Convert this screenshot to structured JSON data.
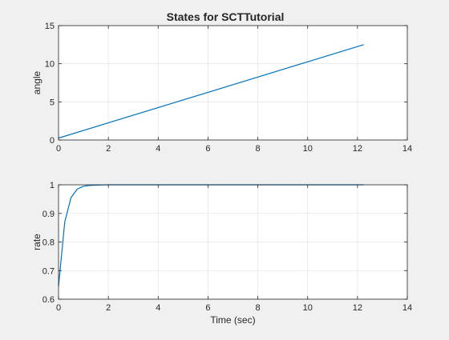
{
  "figure": {
    "title": "States for SCTTutorial",
    "background": "#f0f0f0",
    "axes_color": "#ffffff",
    "line_color": "#0072bd",
    "grid_color": "#e6e6e6"
  },
  "chart_data": [
    {
      "type": "line",
      "title": "States for SCTTutorial",
      "xlabel": "",
      "ylabel": "angle",
      "xlim": [
        0,
        14
      ],
      "ylim": [
        0,
        15
      ],
      "xticks": [
        0,
        2,
        4,
        6,
        8,
        10,
        12,
        14
      ],
      "yticks": [
        0,
        5,
        10,
        15
      ],
      "grid": true,
      "series": [
        {
          "x": [
            0,
            12.25
          ],
          "y": [
            0.25,
            12.5
          ]
        }
      ]
    },
    {
      "type": "line",
      "title": "",
      "xlabel": "Time (sec)",
      "ylabel": "rate",
      "xlim": [
        0,
        14
      ],
      "ylim": [
        0.6,
        1
      ],
      "xticks": [
        0,
        2,
        4,
        6,
        8,
        10,
        12,
        14
      ],
      "yticks": [
        0.6,
        0.7,
        0.8,
        0.9,
        1
      ],
      "grid": true,
      "series": [
        {
          "x": [
            0,
            0.25,
            0.5,
            0.75,
            1.0,
            1.25,
            1.5,
            2.0,
            3.0,
            12.25
          ],
          "y": [
            0.645,
            0.87,
            0.955,
            0.985,
            0.995,
            0.998,
            0.999,
            1.0,
            1.0,
            1.0
          ]
        }
      ]
    }
  ]
}
